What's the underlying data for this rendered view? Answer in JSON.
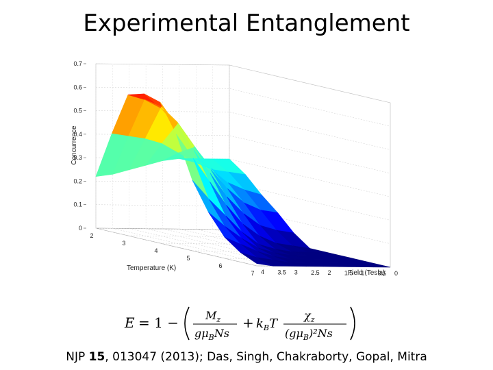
{
  "slide": {
    "title": "Experimental Entanglement",
    "citation": {
      "prefix": "NJP ",
      "volume": "15",
      "suffix": ", 013047 (2013); Das, Singh, Chakraborty, Gopal, Mitra"
    }
  },
  "formula": {
    "lhs": "E",
    "equals_one_minus": "= 1 −",
    "term1_num": "M",
    "term1_num_sub": "z",
    "term1_den": "gμ",
    "term1_den_sub": "B",
    "term1_den_tail": "Ns",
    "plus": "+",
    "coef": "k",
    "coef_sub": "B",
    "coef_tail": "T",
    "term2_num": "χ",
    "term2_num_sub": "z",
    "term2_den": "(gμ",
    "term2_den_sub": "B",
    "term2_den_tail": ")²Ns"
  },
  "chart_data": {
    "type": "surface",
    "zlabel": "Concurrence",
    "xlabel": "Temperature (K)",
    "ylabel": "Field (Tesla)",
    "z_ticks": [
      "0",
      "0.1",
      "0.2",
      "0.3",
      "0.4",
      "0.5",
      "0.6",
      "0.7"
    ],
    "z_range": [
      0,
      0.7
    ],
    "temperature_ticks": [
      "2",
      "3",
      "4",
      "5",
      "6",
      "7"
    ],
    "temperature_range": [
      2,
      7
    ],
    "field_ticks": [
      "4",
      "3.5",
      "3",
      "2.5",
      "2",
      "1.5",
      "1",
      "0.5",
      "0"
    ],
    "field_range": [
      0,
      4
    ],
    "grid": true,
    "colormap": "jet",
    "x_temperature": [
      2.0,
      2.5,
      3.0,
      3.5,
      4.0,
      4.5,
      5.0,
      5.5,
      6.0,
      6.5,
      7.0
    ],
    "y_field": [
      0.0,
      0.5,
      1.0,
      1.5,
      2.0,
      2.5,
      3.0,
      3.5,
      4.0
    ],
    "z_concurrence": [
      [
        0.3,
        0.3,
        0.3,
        0.3,
        0.29,
        0.27,
        0.25,
        0.23,
        0.22
      ],
      [
        0.25,
        0.26,
        0.27,
        0.3,
        0.34,
        0.38,
        0.4,
        0.41,
        0.42
      ],
      [
        0.18,
        0.2,
        0.23,
        0.29,
        0.38,
        0.48,
        0.55,
        0.58,
        0.6
      ],
      [
        0.12,
        0.13,
        0.16,
        0.22,
        0.3,
        0.4,
        0.5,
        0.56,
        0.62
      ],
      [
        0.05,
        0.06,
        0.08,
        0.13,
        0.2,
        0.3,
        0.4,
        0.5,
        0.6
      ],
      [
        0.0,
        0.01,
        0.02,
        0.05,
        0.1,
        0.18,
        0.28,
        0.38,
        0.48
      ],
      [
        0.0,
        0.0,
        0.0,
        0.01,
        0.03,
        0.08,
        0.15,
        0.22,
        0.3
      ],
      [
        0.0,
        0.0,
        0.0,
        0.0,
        0.01,
        0.03,
        0.07,
        0.12,
        0.18
      ],
      [
        0.0,
        0.0,
        0.0,
        0.0,
        0.0,
        0.01,
        0.03,
        0.06,
        0.09
      ],
      [
        0.0,
        0.0,
        0.0,
        0.0,
        0.0,
        0.0,
        0.01,
        0.02,
        0.04
      ],
      [
        0.0,
        0.0,
        0.0,
        0.0,
        0.0,
        0.0,
        0.0,
        0.0,
        0.01
      ]
    ]
  }
}
